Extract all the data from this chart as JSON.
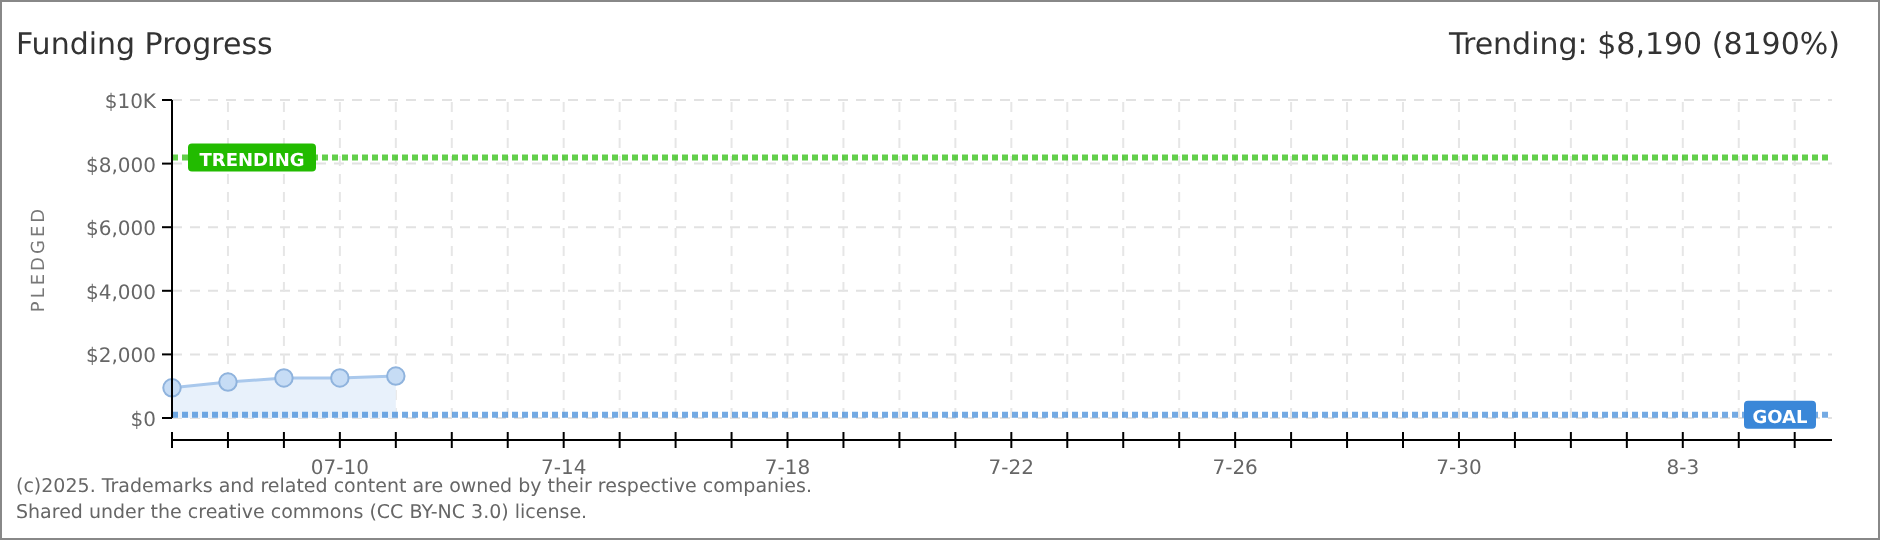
{
  "chart_data": {
    "type": "area",
    "title": "Funding Progress",
    "subtitle": "Trending: $8,190 (8190%)",
    "ylabel": "PLEDGED",
    "x": [
      "2025-07-07",
      "2025-07-08",
      "2025-07-09",
      "2025-07-10",
      "2025-07-11"
    ],
    "series": [
      {
        "color": "#a9c8ec",
        "values": [
          950,
          1130,
          1260,
          1260,
          1320
        ]
      }
    ],
    "marker": "circle",
    "grid": true,
    "xlim": [
      "2025-07-07",
      "2025-08-05T16:00"
    ],
    "xticks": [
      {
        "value": "2025-07-07",
        "label": null
      },
      {
        "value": "2025-07-08",
        "label": null
      },
      {
        "value": "2025-07-09",
        "label": null
      },
      {
        "value": "2025-07-10",
        "label": "07-10"
      },
      {
        "value": "2025-07-11",
        "label": null
      },
      {
        "value": "2025-07-12",
        "label": null
      },
      {
        "value": "2025-07-13",
        "label": null
      },
      {
        "value": "2025-07-14",
        "label": "7-14"
      },
      {
        "value": "2025-07-15",
        "label": null
      },
      {
        "value": "2025-07-16",
        "label": null
      },
      {
        "value": "2025-07-17",
        "label": null
      },
      {
        "value": "2025-07-18",
        "label": "7-18"
      },
      {
        "value": "2025-07-19",
        "label": null
      },
      {
        "value": "2025-07-20",
        "label": null
      },
      {
        "value": "2025-07-21",
        "label": null
      },
      {
        "value": "2025-07-22",
        "label": "7-22"
      },
      {
        "value": "2025-07-23",
        "label": null
      },
      {
        "value": "2025-07-24",
        "label": null
      },
      {
        "value": "2025-07-25",
        "label": null
      },
      {
        "value": "2025-07-26",
        "label": "7-26"
      },
      {
        "value": "2025-07-27",
        "label": null
      },
      {
        "value": "2025-07-28",
        "label": null
      },
      {
        "value": "2025-07-29",
        "label": null
      },
      {
        "value": "2025-07-30",
        "label": "7-30"
      },
      {
        "value": "2025-07-31",
        "label": null
      },
      {
        "value": "2025-08-01",
        "label": null
      },
      {
        "value": "2025-08-02",
        "label": null
      },
      {
        "value": "2025-08-03",
        "label": "8-3"
      },
      {
        "value": "2025-08-04",
        "label": null
      },
      {
        "value": "2025-08-05",
        "label": null
      }
    ],
    "ylim": [
      0,
      10000
    ],
    "yticks": [
      {
        "value": 0,
        "label": "$0"
      },
      {
        "value": 2000,
        "label": "$2,000"
      },
      {
        "value": 4000,
        "label": "$4,000"
      },
      {
        "value": 6000,
        "label": "$6,000"
      },
      {
        "value": 8000,
        "label": "$8,000"
      },
      {
        "value": 10000,
        "label": "$10K"
      }
    ],
    "ref_lines": [
      {
        "axis": "y",
        "value": 8190,
        "label": "TRENDING",
        "color": "#22bb00",
        "line_style": "dotted"
      },
      {
        "axis": "y",
        "value": 100,
        "label": "GOAL",
        "color": "#3a87d8",
        "line_style": "dotted"
      }
    ],
    "annotations": [
      "(c)2025. Trademarks and related content are owned by their respective companies.",
      "Shared under the creative commons (CC BY-NC 3.0) license."
    ]
  }
}
